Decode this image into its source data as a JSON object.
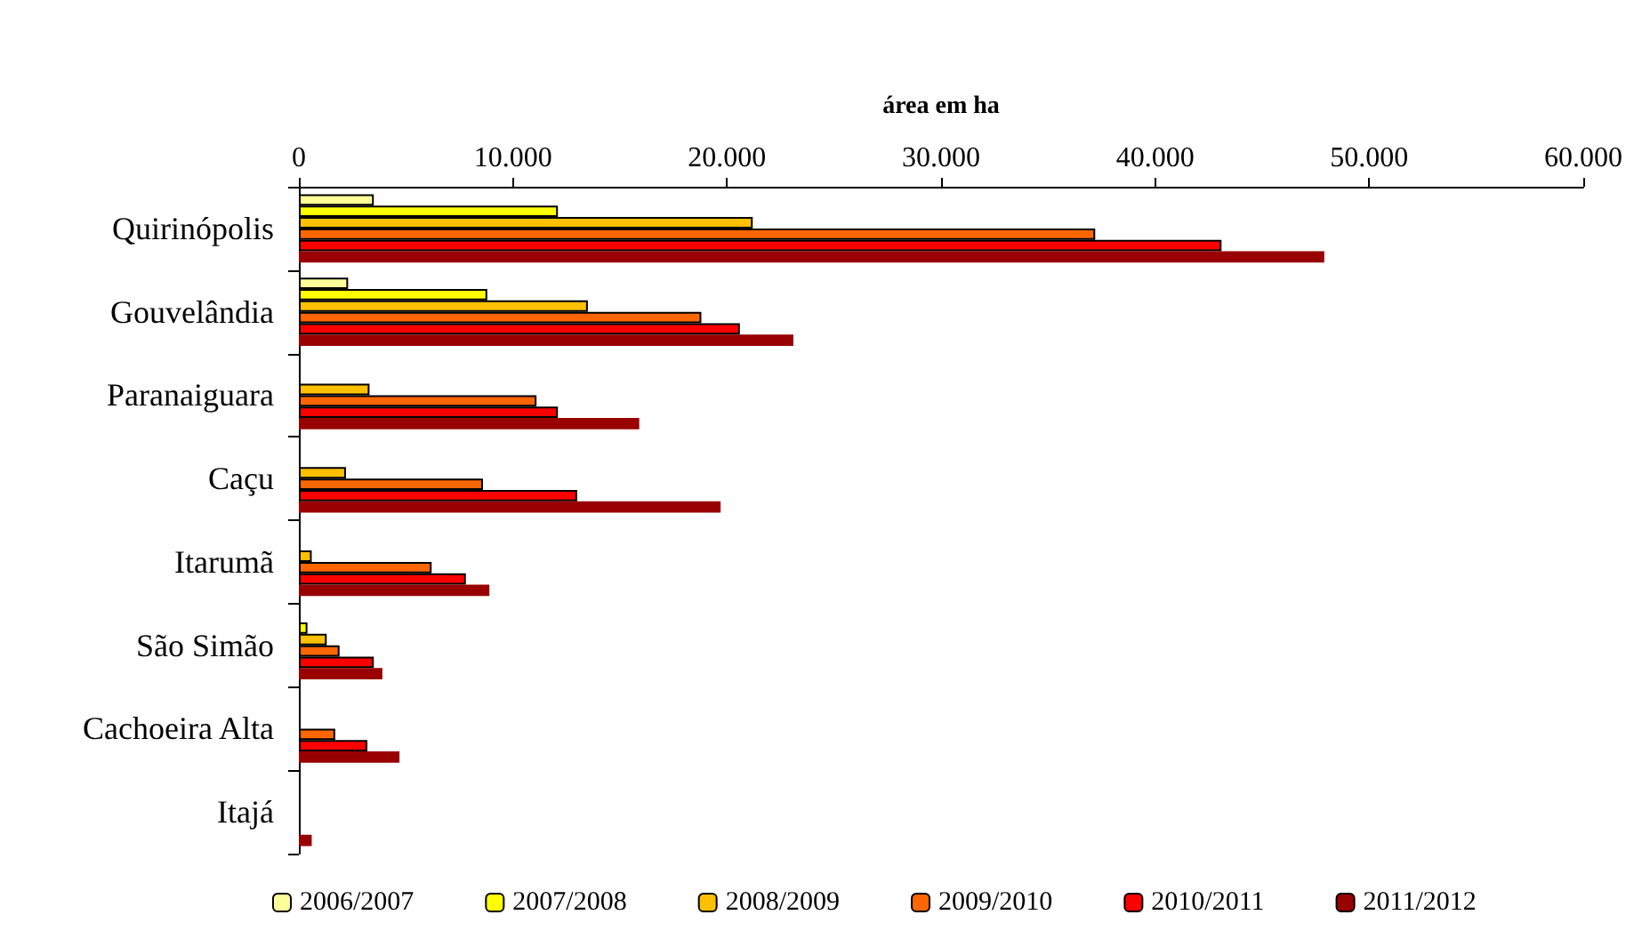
{
  "chart_data": {
    "type": "bar",
    "orientation": "horizontal",
    "xlabel": "área em ha",
    "categories": [
      "Quirinópolis",
      "Gouvelândia",
      "Paranaiguara",
      "Caçu",
      "Itarumã",
      "São Simão",
      "Cachoeira Alta",
      "Itajá"
    ],
    "series": [
      {
        "name": "2006/2007",
        "color": "#ffff99",
        "values": [
          3500,
          2300,
          null,
          null,
          null,
          null,
          null,
          null
        ]
      },
      {
        "name": "2007/2008",
        "color": "#ffff00",
        "values": [
          12100,
          8800,
          null,
          null,
          null,
          400,
          null,
          null
        ]
      },
      {
        "name": "2008/2009",
        "color": "#ffc000",
        "values": [
          21200,
          13500,
          3300,
          2200,
          600,
          1300,
          null,
          null
        ]
      },
      {
        "name": "2009/2010",
        "color": "#ff6600",
        "values": [
          37200,
          18800,
          11100,
          8600,
          6200,
          1900,
          1700,
          null
        ]
      },
      {
        "name": "2010/2011",
        "color": "#ff0000",
        "values": [
          43100,
          20600,
          12100,
          13000,
          7800,
          3500,
          3200,
          null
        ]
      },
      {
        "name": "2011/2012",
        "color": "#990000",
        "values": [
          47900,
          23100,
          15900,
          19700,
          8900,
          3900,
          4700,
          600
        ]
      }
    ],
    "xlim": [
      0,
      60000
    ],
    "xticks": [
      0,
      {
        "value": 10000,
        "label": "10.000"
      },
      {
        "value": 20000,
        "label": "20.000"
      },
      {
        "value": 30000,
        "label": "30.000"
      },
      {
        "value": 40000,
        "label": "40.000"
      },
      {
        "value": 50000,
        "label": "50.000"
      },
      {
        "value": 60000,
        "label": "60.000"
      }
    ],
    "grid": false,
    "legend": "bottom"
  }
}
